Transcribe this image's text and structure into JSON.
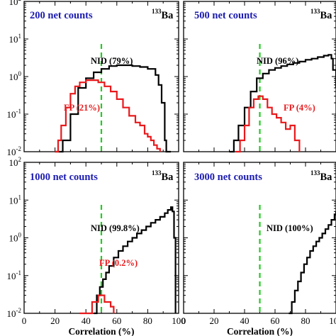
{
  "chart_data": [
    {
      "type": "line",
      "panel_title": "200 net counts",
      "isotope": {
        "mass": "133",
        "element": "Ba"
      },
      "xlabel": "",
      "xlim": [
        0,
        100
      ],
      "ylim": [
        0.01,
        100
      ],
      "yscale": "log",
      "threshold_x": 50,
      "series": [
        {
          "label": "NID (79%)",
          "color": "#000000",
          "x": [
            20,
            25,
            30,
            35,
            40,
            45,
            50,
            55,
            60,
            65,
            70,
            75,
            80,
            85,
            87,
            89,
            91,
            92,
            95
          ],
          "y": [
            0.01,
            0.02,
            0.1,
            0.5,
            0.9,
            1.3,
            1.6,
            1.9,
            2.0,
            2.0,
            1.9,
            1.8,
            1.6,
            1.1,
            0.6,
            0.2,
            0.02,
            0.01,
            0.01
          ]
        },
        {
          "label": "FP (21%)",
          "color": "#e8191c",
          "x": [
            20,
            22,
            24,
            27,
            30,
            33,
            36,
            40,
            44,
            48,
            52,
            56,
            60,
            64,
            68,
            72,
            75,
            78,
            80,
            82,
            84,
            86,
            88
          ],
          "y": [
            0.01,
            0.02,
            0.05,
            0.15,
            0.35,
            0.55,
            0.7,
            0.8,
            0.8,
            0.7,
            0.55,
            0.4,
            0.25,
            0.15,
            0.09,
            0.06,
            0.05,
            0.03,
            0.025,
            0.02,
            0.015,
            0.012,
            0.01
          ]
        }
      ]
    },
    {
      "type": "line",
      "panel_title": "500 net counts",
      "isotope": {
        "mass": "133",
        "element": "Ba"
      },
      "xlabel": "",
      "xlim": [
        0,
        100
      ],
      "ylim": [
        0.01,
        100
      ],
      "yscale": "log",
      "threshold_x": 50,
      "series": [
        {
          "label": "NID (96%)",
          "color": "#000000",
          "x": [
            30,
            33,
            36,
            40,
            44,
            48,
            52,
            56,
            60,
            64,
            68,
            72,
            76,
            80,
            84,
            88,
            92,
            95,
            97,
            98,
            100
          ],
          "y": [
            0.01,
            0.02,
            0.05,
            0.15,
            0.4,
            0.9,
            1.2,
            1.5,
            1.7,
            1.9,
            2.1,
            2.3,
            2.5,
            2.8,
            3.0,
            3.3,
            3.6,
            3.8,
            3.0,
            1.5,
            0.5
          ]
        },
        {
          "label": "FP (4%)",
          "color": "#e8191c",
          "x": [
            34,
            37,
            40,
            43,
            46,
            49,
            52,
            55,
            58,
            61,
            64,
            67,
            70,
            73,
            76
          ],
          "y": [
            0.01,
            0.02,
            0.05,
            0.15,
            0.25,
            0.3,
            0.25,
            0.15,
            0.1,
            0.08,
            0.06,
            0.04,
            0.05,
            0.02,
            0.01
          ]
        }
      ]
    },
    {
      "type": "line",
      "panel_title": "1000 net counts",
      "isotope": {
        "mass": "133",
        "element": "Ba"
      },
      "xlabel": "Correlation (%)",
      "xlim": [
        0,
        100
      ],
      "xticks": [
        0,
        20,
        40,
        60,
        80,
        100
      ],
      "ylim": [
        0.01,
        100
      ],
      "yscale": "log",
      "threshold_x": 50,
      "series": [
        {
          "label": "NID (99.8%)",
          "color": "#000000",
          "x": [
            45,
            47,
            49,
            51,
            53,
            55,
            58,
            61,
            64,
            67,
            70,
            73,
            76,
            79,
            82,
            85,
            88,
            91,
            93,
            95,
            96,
            97,
            98
          ],
          "y": [
            0.01,
            0.03,
            0.05,
            0.08,
            0.12,
            0.18,
            0.3,
            0.45,
            0.6,
            0.8,
            1.0,
            1.3,
            1.6,
            2.0,
            2.5,
            3.0,
            3.6,
            4.5,
            5.5,
            6.5,
            5.0,
            1.0,
            0.01
          ]
        },
        {
          "label": "FP (0.2%)",
          "color": "#e8191c",
          "x": [
            36,
            40,
            44,
            48,
            52,
            56,
            58
          ],
          "y": [
            0.01,
            0.01,
            0.02,
            0.03,
            0.02,
            0.015,
            0.01
          ]
        }
      ]
    },
    {
      "type": "line",
      "panel_title": "3000 net counts",
      "isotope": {
        "mass": "133",
        "element": "Ba"
      },
      "xlabel": "Correlation (%)",
      "xlim": [
        0,
        100
      ],
      "xticks": [
        0,
        20,
        40,
        60,
        80,
        100
      ],
      "ylim": [
        0.01,
        100
      ],
      "yscale": "log",
      "threshold_x": 50,
      "series": [
        {
          "label": "NID (100%)",
          "color": "#000000",
          "x": [
            69,
            71,
            73,
            75,
            77,
            79,
            81,
            83,
            85,
            87,
            89,
            91,
            93,
            95,
            97,
            99,
            100
          ],
          "y": [
            0.01,
            0.02,
            0.04,
            0.07,
            0.12,
            0.2,
            0.3,
            0.45,
            0.6,
            0.8,
            1.0,
            1.3,
            1.7,
            2.2,
            3.0,
            4.2,
            5.0
          ]
        }
      ]
    }
  ],
  "y_tick_labels": [
    {
      "base": "10",
      "exp": "2"
    },
    {
      "base": "10",
      "exp": "1"
    },
    {
      "base": "10",
      "exp": "0"
    },
    {
      "base": "10",
      "exp": "-1"
    },
    {
      "base": "10",
      "exp": "-2"
    }
  ],
  "colors": {
    "title": "#1b1bb0",
    "nid": "#000000",
    "fp": "#e8191c",
    "threshold": "#22cc22"
  }
}
